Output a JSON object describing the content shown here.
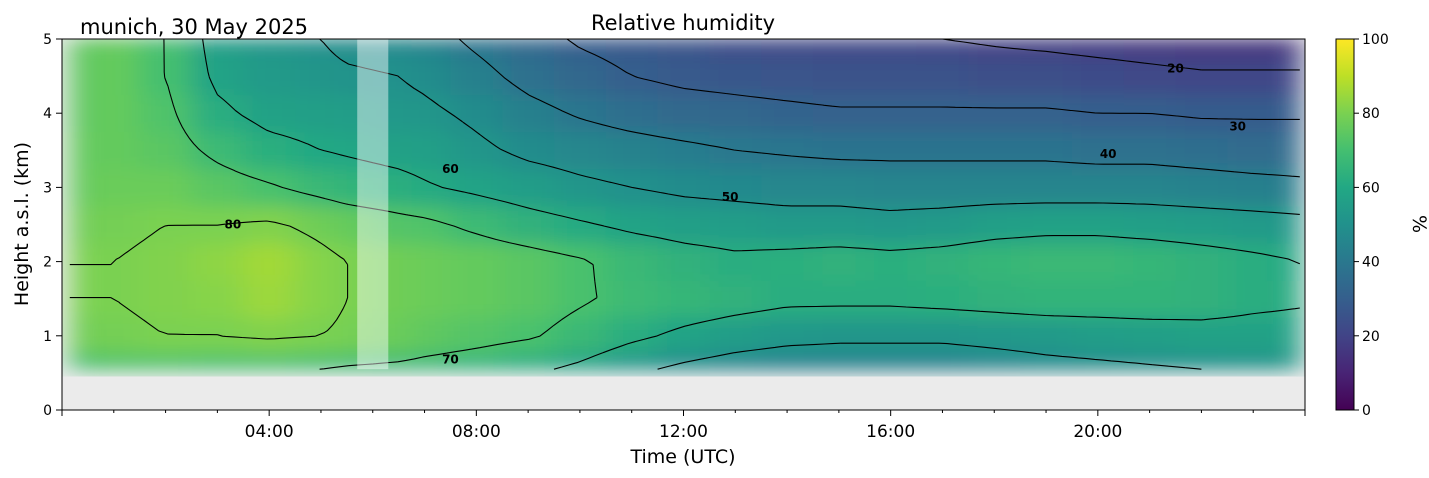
{
  "chart_data": {
    "type": "heatmap",
    "subtitle": "munich, 30 May 2025",
    "title": "Relative humidity",
    "xlabel": "Time (UTC)",
    "ylabel": "Height a.s.l. (km)",
    "xlim": [
      0,
      24
    ],
    "ylim": [
      0,
      5
    ],
    "x_ticks": [
      {
        "value": 4,
        "label": "04:00"
      },
      {
        "value": 8,
        "label": "08:00"
      },
      {
        "value": 12,
        "label": "12:00"
      },
      {
        "value": 16,
        "label": "16:00"
      },
      {
        "value": 20,
        "label": "20:00"
      }
    ],
    "y_ticks": [
      {
        "value": 0,
        "label": "0"
      },
      {
        "value": 1,
        "label": "1"
      },
      {
        "value": 2,
        "label": "2"
      },
      {
        "value": 3,
        "label": "3"
      },
      {
        "value": 4,
        "label": "4"
      },
      {
        "value": 5,
        "label": "5"
      }
    ],
    "data_extent": {
      "x": [
        0.15,
        23.9
      ],
      "y": [
        0.55,
        5.0
      ]
    },
    "shaded_gap": {
      "x": [
        5.7,
        6.3
      ]
    },
    "colorbar": {
      "label": "%",
      "range": [
        0,
        100
      ],
      "colormap": "viridis",
      "ticks": [
        {
          "value": 0,
          "label": "0"
        },
        {
          "value": 20,
          "label": "20"
        },
        {
          "value": 40,
          "label": "40"
        },
        {
          "value": 60,
          "label": "60"
        },
        {
          "value": 80,
          "label": "80"
        },
        {
          "value": 100,
          "label": "100"
        }
      ]
    },
    "contour_labels": [
      {
        "text": "20",
        "x": 21.5,
        "y": 4.6
      },
      {
        "text": "30",
        "x": 22.7,
        "y": 3.82
      },
      {
        "text": "40",
        "x": 20.2,
        "y": 3.45
      },
      {
        "text": "50",
        "x": 12.9,
        "y": 2.87
      },
      {
        "text": "60",
        "x": 7.5,
        "y": 3.25
      },
      {
        "text": "70",
        "x": 7.5,
        "y": 0.68
      },
      {
        "text": "80",
        "x": 3.3,
        "y": 2.5
      }
    ],
    "humidity_field": {
      "times": [
        0.15,
        1,
        2,
        3,
        4,
        5,
        5.5,
        6.5,
        7,
        8,
        9,
        10,
        11,
        12,
        13,
        14,
        15,
        16,
        17,
        18,
        19,
        20,
        21,
        22,
        23,
        23.9
      ],
      "heights": [
        0.55,
        1.0,
        1.5,
        2.0,
        2.5,
        3.0,
        3.5,
        4.0,
        4.5,
        5.0
      ],
      "values": [
        [
          70,
          78,
          80,
          80,
          78,
          76,
          76,
          75,
          75,
          75
        ],
        [
          72,
          79,
          80,
          80,
          79,
          77,
          76,
          76,
          76,
          76
        ],
        [
          72,
          80,
          81,
          81,
          80,
          77,
          74,
          72,
          70,
          70
        ],
        [
          71,
          80,
          82,
          83,
          80,
          74,
          68,
          62,
          58,
          56
        ],
        [
          71,
          81,
          85,
          86,
          81,
          71,
          63,
          57,
          54,
          52
        ],
        [
          70,
          80,
          82,
          82,
          78,
          67,
          60,
          56,
          52,
          50
        ],
        [
          69,
          79,
          80,
          80,
          76,
          65,
          59,
          55,
          51,
          48
        ],
        [
          68,
          77,
          78,
          78,
          73,
          63,
          57,
          53,
          50,
          47
        ],
        [
          67,
          75,
          77,
          77,
          72,
          61,
          56,
          52,
          48,
          44
        ],
        [
          65,
          73,
          76,
          76,
          68,
          58,
          52,
          48,
          43,
          38
        ],
        [
          62,
          71,
          74,
          74,
          64,
          55,
          48,
          43,
          37,
          33
        ],
        [
          58,
          67,
          71,
          71,
          61,
          52,
          46,
          39,
          33,
          29
        ],
        [
          52,
          62,
          68,
          67,
          58,
          50,
          44,
          36,
          30,
          27
        ],
        [
          48,
          58,
          66,
          64,
          56,
          48,
          42,
          34,
          28,
          25
        ],
        [
          45,
          55,
          64,
          62,
          55,
          47,
          40,
          33,
          27,
          23
        ],
        [
          43,
          53,
          62,
          63,
          54,
          46,
          39,
          32,
          26,
          22
        ],
        [
          43,
          52,
          62,
          64,
          54,
          46,
          38,
          31,
          25,
          21
        ],
        [
          43,
          52,
          62,
          63,
          53,
          45,
          38,
          31,
          25,
          21
        ],
        [
          43,
          52,
          63,
          64,
          54,
          45,
          38,
          31,
          25,
          20
        ],
        [
          45,
          53,
          64,
          66,
          56,
          45,
          38,
          31,
          24,
          19
        ],
        [
          47,
          54,
          65,
          67,
          57,
          45,
          38,
          31,
          24,
          18
        ],
        [
          48,
          55,
          65,
          67,
          57,
          45,
          37,
          30,
          23,
          17
        ],
        [
          49,
          56,
          65,
          66,
          56,
          45,
          37,
          30,
          22,
          16
        ],
        [
          50,
          57,
          64,
          64,
          55,
          44,
          36,
          29,
          21,
          15
        ],
        [
          51,
          57,
          62,
          62,
          54,
          43,
          35,
          29,
          21,
          15
        ],
        [
          52,
          57,
          61,
          60,
          53,
          42,
          35,
          29,
          21,
          15
        ]
      ]
    }
  }
}
